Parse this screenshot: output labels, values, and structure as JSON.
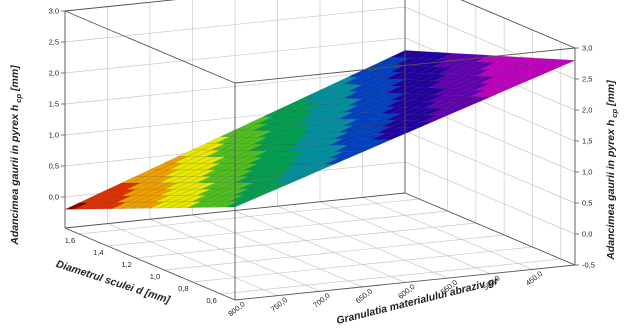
{
  "chart_data": {
    "type": "surface",
    "title": "",
    "zlabel_left": "Adancimea gaurii in pyrex h",
    "zlabel_right": "Adancimea gaurii in pyrex h",
    "zlabel_sub": "cp",
    "zlabel_unit": "[mm]",
    "ylabel": "Diametrul sculei d [mm]",
    "xlabel": "Granulatia materialului abraziv gr",
    "z_ticks": [
      "-0,5",
      "0,0",
      "0,5",
      "1,0",
      "1,5",
      "2,0",
      "2,5",
      "3,0"
    ],
    "z_ticks_left": [
      "0,0",
      "0,5",
      "1,0",
      "1,5",
      "2,0",
      "2,5",
      "3,0"
    ],
    "x_ticks": [
      "800,0",
      "750,0",
      "700,0",
      "650,0",
      "600,0",
      "550,0",
      "500,0",
      "450,0"
    ],
    "y_ticks": [
      "0,6",
      "0,8",
      "1,0",
      "1,2",
      "1,4",
      "1,6"
    ],
    "xlim": [
      800,
      400
    ],
    "ylim": [
      0.5,
      1.7
    ],
    "zlim": [
      -0.5,
      3.0
    ],
    "grid": true,
    "corner_values": {
      "x800_y1.7": -0.2,
      "x800_y0.5": 1.0,
      "x400_y1.7": 1.8,
      "x400_y0.5": 2.8
    },
    "colormap": [
      "#8b0000",
      "#e03000",
      "#f0a000",
      "#e8e800",
      "#50c020",
      "#00a050",
      "#0090a0",
      "#0040c0",
      "#2000a0",
      "#6000b0",
      "#c000c0"
    ]
  }
}
